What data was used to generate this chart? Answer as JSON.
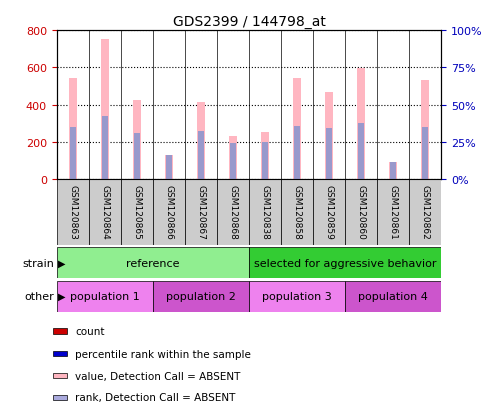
{
  "title": "GDS2399 / 144798_at",
  "samples": [
    "GSM120863",
    "GSM120864",
    "GSM120865",
    "GSM120866",
    "GSM120867",
    "GSM120868",
    "GSM120838",
    "GSM120858",
    "GSM120859",
    "GSM120860",
    "GSM120861",
    "GSM120862"
  ],
  "pink_values": [
    545,
    750,
    425,
    130,
    415,
    230,
    255,
    545,
    465,
    595,
    90,
    530
  ],
  "blue_values": [
    280,
    340,
    248,
    130,
    258,
    193,
    200,
    285,
    275,
    300,
    90,
    280
  ],
  "pink_bar_color": "#FFB6C1",
  "blue_bar_color": "#9999CC",
  "ylim_left": [
    0,
    800
  ],
  "ylim_right": [
    0,
    100
  ],
  "yticks_left": [
    0,
    200,
    400,
    600,
    800
  ],
  "yticks_right": [
    0,
    25,
    50,
    75,
    100
  ],
  "strain_groups": [
    {
      "label": "reference",
      "start": 0,
      "end": 6,
      "color": "#90EE90"
    },
    {
      "label": "selected for aggressive behavior",
      "start": 6,
      "end": 12,
      "color": "#33CC33"
    }
  ],
  "other_groups": [
    {
      "label": "population 1",
      "start": 0,
      "end": 3,
      "color": "#EE82EE"
    },
    {
      "label": "population 2",
      "start": 3,
      "end": 6,
      "color": "#CC55CC"
    },
    {
      "label": "population 3",
      "start": 6,
      "end": 9,
      "color": "#EE82EE"
    },
    {
      "label": "population 4",
      "start": 9,
      "end": 12,
      "color": "#CC55CC"
    }
  ],
  "legend_items": [
    {
      "color": "#CC0000",
      "label": "count"
    },
    {
      "color": "#0000CC",
      "label": "percentile rank within the sample"
    },
    {
      "color": "#FFB6C1",
      "label": "value, Detection Call = ABSENT"
    },
    {
      "color": "#AAAADD",
      "label": "rank, Detection Call = ABSENT"
    }
  ],
  "tick_color_left": "#CC0000",
  "tick_color_right": "#0000BB",
  "sample_box_color": "#CCCCCC",
  "fig_width": 4.93,
  "fig_height": 4.14,
  "dpi": 100
}
